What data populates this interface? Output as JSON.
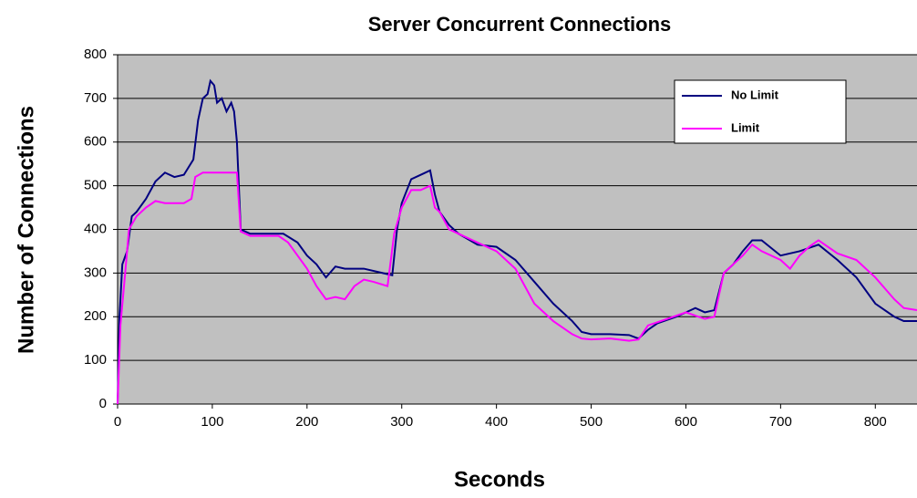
{
  "chart_data": {
    "type": "line",
    "title": "Server Concurrent Connections",
    "x_label": "Seconds",
    "y_label": "Number of Connections",
    "xlim": [
      0,
      844
    ],
    "xticks": [
      0,
      100,
      200,
      300,
      400,
      500,
      600,
      700,
      800
    ],
    "ylim": [
      0,
      800
    ],
    "yticks": [
      0,
      100,
      200,
      300,
      400,
      500,
      600,
      700,
      800
    ],
    "grid": true,
    "legend": "upper right",
    "series": [
      {
        "name": "No Limit",
        "color": "#000080",
        "x": [
          0,
          2,
          5,
          10,
          15,
          20,
          30,
          40,
          50,
          60,
          70,
          80,
          85,
          90,
          95,
          98,
          102,
          105,
          110,
          115,
          120,
          123,
          126,
          130,
          140,
          160,
          175,
          190,
          200,
          210,
          220,
          230,
          240,
          260,
          280,
          290,
          295,
          300,
          310,
          320,
          330,
          335,
          340,
          350,
          360,
          380,
          400,
          420,
          440,
          460,
          480,
          490,
          500,
          520,
          540,
          550,
          560,
          570,
          590,
          610,
          620,
          630,
          640,
          650,
          660,
          670,
          680,
          700,
          720,
          740,
          760,
          780,
          800,
          820,
          830,
          844
        ],
        "values": [
          0,
          200,
          320,
          350,
          430,
          440,
          470,
          510,
          530,
          520,
          525,
          560,
          650,
          700,
          710,
          740,
          730,
          690,
          700,
          670,
          690,
          670,
          600,
          400,
          390,
          390,
          390,
          370,
          340,
          320,
          290,
          315,
          310,
          310,
          300,
          295,
          400,
          460,
          515,
          525,
          535,
          480,
          440,
          410,
          390,
          365,
          360,
          330,
          280,
          230,
          190,
          165,
          160,
          160,
          158,
          150,
          170,
          185,
          200,
          220,
          210,
          215,
          300,
          320,
          350,
          375,
          375,
          340,
          350,
          365,
          330,
          290,
          230,
          200,
          190,
          190
        ]
      },
      {
        "name": "Limit",
        "color": "#ff00ff",
        "x": [
          0,
          3,
          8,
          12,
          20,
          30,
          40,
          50,
          70,
          78,
          82,
          90,
          126,
          130,
          140,
          170,
          180,
          190,
          200,
          210,
          220,
          230,
          240,
          250,
          260,
          270,
          285,
          292,
          300,
          310,
          320,
          330,
          335,
          340,
          350,
          360,
          380,
          400,
          420,
          440,
          460,
          480,
          490,
          500,
          520,
          540,
          550,
          560,
          580,
          600,
          620,
          630,
          640,
          660,
          670,
          680,
          700,
          710,
          720,
          730,
          740,
          760,
          780,
          800,
          820,
          830,
          844
        ],
        "values": [
          0,
          180,
          300,
          400,
          430,
          450,
          465,
          460,
          460,
          470,
          520,
          530,
          530,
          395,
          385,
          385,
          370,
          340,
          310,
          270,
          240,
          245,
          240,
          270,
          285,
          280,
          270,
          390,
          450,
          490,
          490,
          500,
          450,
          440,
          400,
          390,
          370,
          350,
          310,
          230,
          190,
          160,
          150,
          148,
          150,
          145,
          148,
          180,
          195,
          210,
          195,
          200,
          300,
          340,
          365,
          350,
          330,
          310,
          340,
          360,
          375,
          345,
          330,
          290,
          240,
          220,
          215
        ]
      }
    ]
  }
}
